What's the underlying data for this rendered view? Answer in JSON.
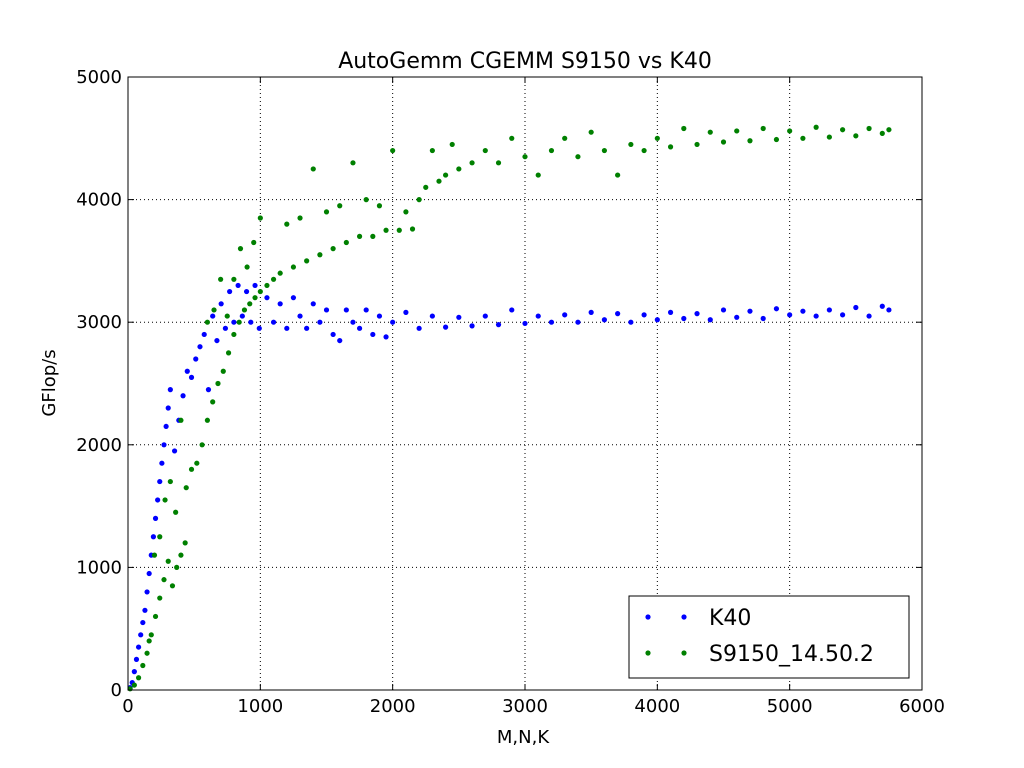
{
  "chart_data": {
    "type": "scatter",
    "title": "AutoGemm CGEMM S9150 vs K40",
    "xlabel": "M,N,K",
    "ylabel": "GFlop/s",
    "xlim": [
      0,
      6000
    ],
    "ylim": [
      0,
      5000
    ],
    "xticks": [
      0,
      1000,
      2000,
      3000,
      4000,
      5000,
      6000
    ],
    "yticks": [
      0,
      1000,
      2000,
      3000,
      4000,
      5000
    ],
    "grid": true,
    "legend_placement": "lower-right",
    "series": [
      {
        "name": "K40",
        "color": "#0000ff",
        "points": [
          [
            16,
            20
          ],
          [
            32,
            60
          ],
          [
            48,
            150
          ],
          [
            64,
            250
          ],
          [
            80,
            350
          ],
          [
            96,
            450
          ],
          [
            112,
            550
          ],
          [
            128,
            650
          ],
          [
            144,
            800
          ],
          [
            160,
            950
          ],
          [
            176,
            1100
          ],
          [
            192,
            1250
          ],
          [
            208,
            1400
          ],
          [
            224,
            1550
          ],
          [
            240,
            1700
          ],
          [
            256,
            1850
          ],
          [
            272,
            2000
          ],
          [
            288,
            2150
          ],
          [
            304,
            2300
          ],
          [
            320,
            2450
          ],
          [
            352,
            1950
          ],
          [
            384,
            2200
          ],
          [
            416,
            2400
          ],
          [
            448,
            2600
          ],
          [
            480,
            2550
          ],
          [
            512,
            2700
          ],
          [
            544,
            2800
          ],
          [
            576,
            2900
          ],
          [
            608,
            2450
          ],
          [
            640,
            3050
          ],
          [
            672,
            2850
          ],
          [
            704,
            3150
          ],
          [
            736,
            2950
          ],
          [
            768,
            3250
          ],
          [
            800,
            3000
          ],
          [
            832,
            3300
          ],
          [
            864,
            3050
          ],
          [
            896,
            3250
          ],
          [
            928,
            3000
          ],
          [
            960,
            3300
          ],
          [
            992,
            2950
          ],
          [
            1050,
            3200
          ],
          [
            1100,
            3000
          ],
          [
            1150,
            3150
          ],
          [
            1200,
            2950
          ],
          [
            1250,
            3200
          ],
          [
            1300,
            3050
          ],
          [
            1350,
            2950
          ],
          [
            1400,
            3150
          ],
          [
            1450,
            3000
          ],
          [
            1500,
            3100
          ],
          [
            1550,
            2900
          ],
          [
            1600,
            2850
          ],
          [
            1650,
            3100
          ],
          [
            1700,
            3000
          ],
          [
            1750,
            2950
          ],
          [
            1800,
            3100
          ],
          [
            1850,
            2900
          ],
          [
            1900,
            3050
          ],
          [
            1950,
            2880
          ],
          [
            2000,
            3000
          ],
          [
            2100,
            3080
          ],
          [
            2200,
            2950
          ],
          [
            2300,
            3050
          ],
          [
            2400,
            2960
          ],
          [
            2500,
            3040
          ],
          [
            2600,
            2970
          ],
          [
            2700,
            3050
          ],
          [
            2800,
            2980
          ],
          [
            2900,
            3100
          ],
          [
            3000,
            2990
          ],
          [
            3100,
            3050
          ],
          [
            3200,
            3000
          ],
          [
            3300,
            3060
          ],
          [
            3400,
            3000
          ],
          [
            3500,
            3080
          ],
          [
            3600,
            3020
          ],
          [
            3700,
            3070
          ],
          [
            3800,
            3000
          ],
          [
            3900,
            3060
          ],
          [
            4000,
            3020
          ],
          [
            4100,
            3080
          ],
          [
            4200,
            3030
          ],
          [
            4300,
            3070
          ],
          [
            4400,
            3020
          ],
          [
            4500,
            3100
          ],
          [
            4600,
            3040
          ],
          [
            4700,
            3090
          ],
          [
            4800,
            3030
          ],
          [
            4900,
            3110
          ],
          [
            5000,
            3060
          ],
          [
            5100,
            3090
          ],
          [
            5200,
            3050
          ],
          [
            5300,
            3100
          ],
          [
            5400,
            3060
          ],
          [
            5500,
            3120
          ],
          [
            5600,
            3050
          ],
          [
            5700,
            3130
          ],
          [
            5750,
            3100
          ]
        ]
      },
      {
        "name": "S9150_14.50.2",
        "color": "#008000",
        "points": [
          [
            16,
            10
          ],
          [
            48,
            40
          ],
          [
            80,
            100
          ],
          [
            112,
            200
          ],
          [
            144,
            300
          ],
          [
            176,
            450
          ],
          [
            208,
            600
          ],
          [
            240,
            750
          ],
          [
            272,
            900
          ],
          [
            304,
            1050
          ],
          [
            336,
            850
          ],
          [
            368,
            1000
          ],
          [
            400,
            1100
          ],
          [
            432,
            1200
          ],
          [
            160,
            400
          ],
          [
            200,
            1100
          ],
          [
            240,
            1250
          ],
          [
            280,
            1550
          ],
          [
            320,
            1700
          ],
          [
            360,
            1450
          ],
          [
            400,
            2200
          ],
          [
            440,
            1650
          ],
          [
            480,
            1800
          ],
          [
            520,
            1850
          ],
          [
            560,
            2000
          ],
          [
            600,
            2200
          ],
          [
            640,
            2350
          ],
          [
            680,
            2500
          ],
          [
            720,
            2600
          ],
          [
            760,
            2750
          ],
          [
            800,
            2900
          ],
          [
            840,
            3000
          ],
          [
            880,
            3100
          ],
          [
            920,
            3150
          ],
          [
            960,
            3200
          ],
          [
            1000,
            3250
          ],
          [
            600,
            3000
          ],
          [
            650,
            3100
          ],
          [
            700,
            3350
          ],
          [
            750,
            3050
          ],
          [
            800,
            3350
          ],
          [
            850,
            3600
          ],
          [
            900,
            3450
          ],
          [
            950,
            3650
          ],
          [
            1000,
            3850
          ],
          [
            1050,
            3300
          ],
          [
            1100,
            3350
          ],
          [
            1150,
            3400
          ],
          [
            1200,
            3800
          ],
          [
            1250,
            3450
          ],
          [
            1300,
            3850
          ],
          [
            1350,
            3500
          ],
          [
            1400,
            4250
          ],
          [
            1450,
            3550
          ],
          [
            1500,
            3900
          ],
          [
            1550,
            3600
          ],
          [
            1600,
            3950
          ],
          [
            1650,
            3650
          ],
          [
            1700,
            4300
          ],
          [
            1750,
            3700
          ],
          [
            1800,
            4000
          ],
          [
            1850,
            3700
          ],
          [
            1900,
            3950
          ],
          [
            1950,
            3750
          ],
          [
            2000,
            4400
          ],
          [
            2050,
            3750
          ],
          [
            2100,
            3900
          ],
          [
            2150,
            3760
          ],
          [
            2200,
            4000
          ],
          [
            2250,
            4100
          ],
          [
            2300,
            4400
          ],
          [
            2350,
            4150
          ],
          [
            2400,
            4200
          ],
          [
            2450,
            4450
          ],
          [
            2500,
            4250
          ],
          [
            2600,
            4300
          ],
          [
            2700,
            4400
          ],
          [
            2800,
            4300
          ],
          [
            2900,
            4500
          ],
          [
            3000,
            4350
          ],
          [
            3100,
            4200
          ],
          [
            3200,
            4400
          ],
          [
            3300,
            4500
          ],
          [
            3400,
            4350
          ],
          [
            3500,
            4550
          ],
          [
            3600,
            4400
          ],
          [
            3700,
            4200
          ],
          [
            3800,
            4450
          ],
          [
            3900,
            4400
          ],
          [
            4000,
            4500
          ],
          [
            4100,
            4430
          ],
          [
            4200,
            4580
          ],
          [
            4300,
            4450
          ],
          [
            4400,
            4550
          ],
          [
            4500,
            4470
          ],
          [
            4600,
            4560
          ],
          [
            4700,
            4480
          ],
          [
            4800,
            4580
          ],
          [
            4900,
            4490
          ],
          [
            5000,
            4560
          ],
          [
            5100,
            4500
          ],
          [
            5200,
            4590
          ],
          [
            5300,
            4510
          ],
          [
            5400,
            4570
          ],
          [
            5500,
            4520
          ],
          [
            5600,
            4580
          ],
          [
            5700,
            4540
          ],
          [
            5750,
            4570
          ]
        ]
      }
    ]
  }
}
